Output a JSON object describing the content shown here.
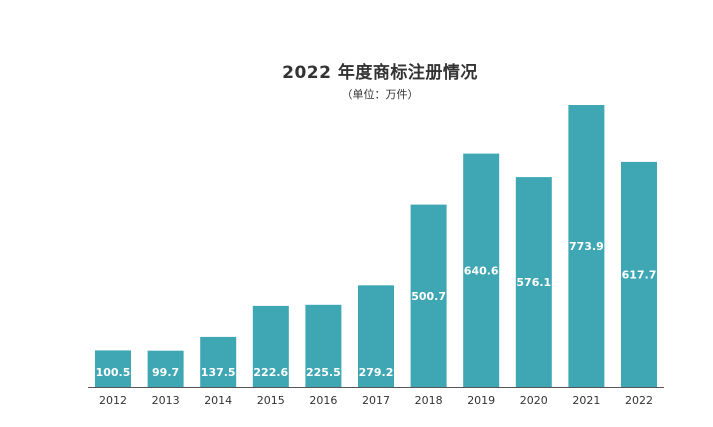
{
  "chart_data": {
    "type": "bar",
    "title": "2022 年度商标注册情况",
    "subtitle": "（单位：万件）",
    "categories": [
      "2012",
      "2013",
      "2014",
      "2015",
      "2016",
      "2017",
      "2018",
      "2019",
      "2020",
      "2021",
      "2022"
    ],
    "values": [
      100.5,
      99.7,
      137.5,
      222.6,
      225.5,
      279.2,
      500.7,
      640.6,
      576.1,
      773.9,
      617.7
    ],
    "value_labels": [
      "100.5",
      "99.7",
      "137.5",
      "222.6",
      "225.5",
      "279.2",
      "500.7",
      "640.6",
      "576.1",
      "773.9",
      "617.7"
    ],
    "ylim": [
      0,
      800
    ],
    "grid": false,
    "legend": "none",
    "bar_color": "#3fa7b4",
    "label_color": "#ffffff",
    "axis_color": "#555555",
    "text_color": "#333333"
  }
}
